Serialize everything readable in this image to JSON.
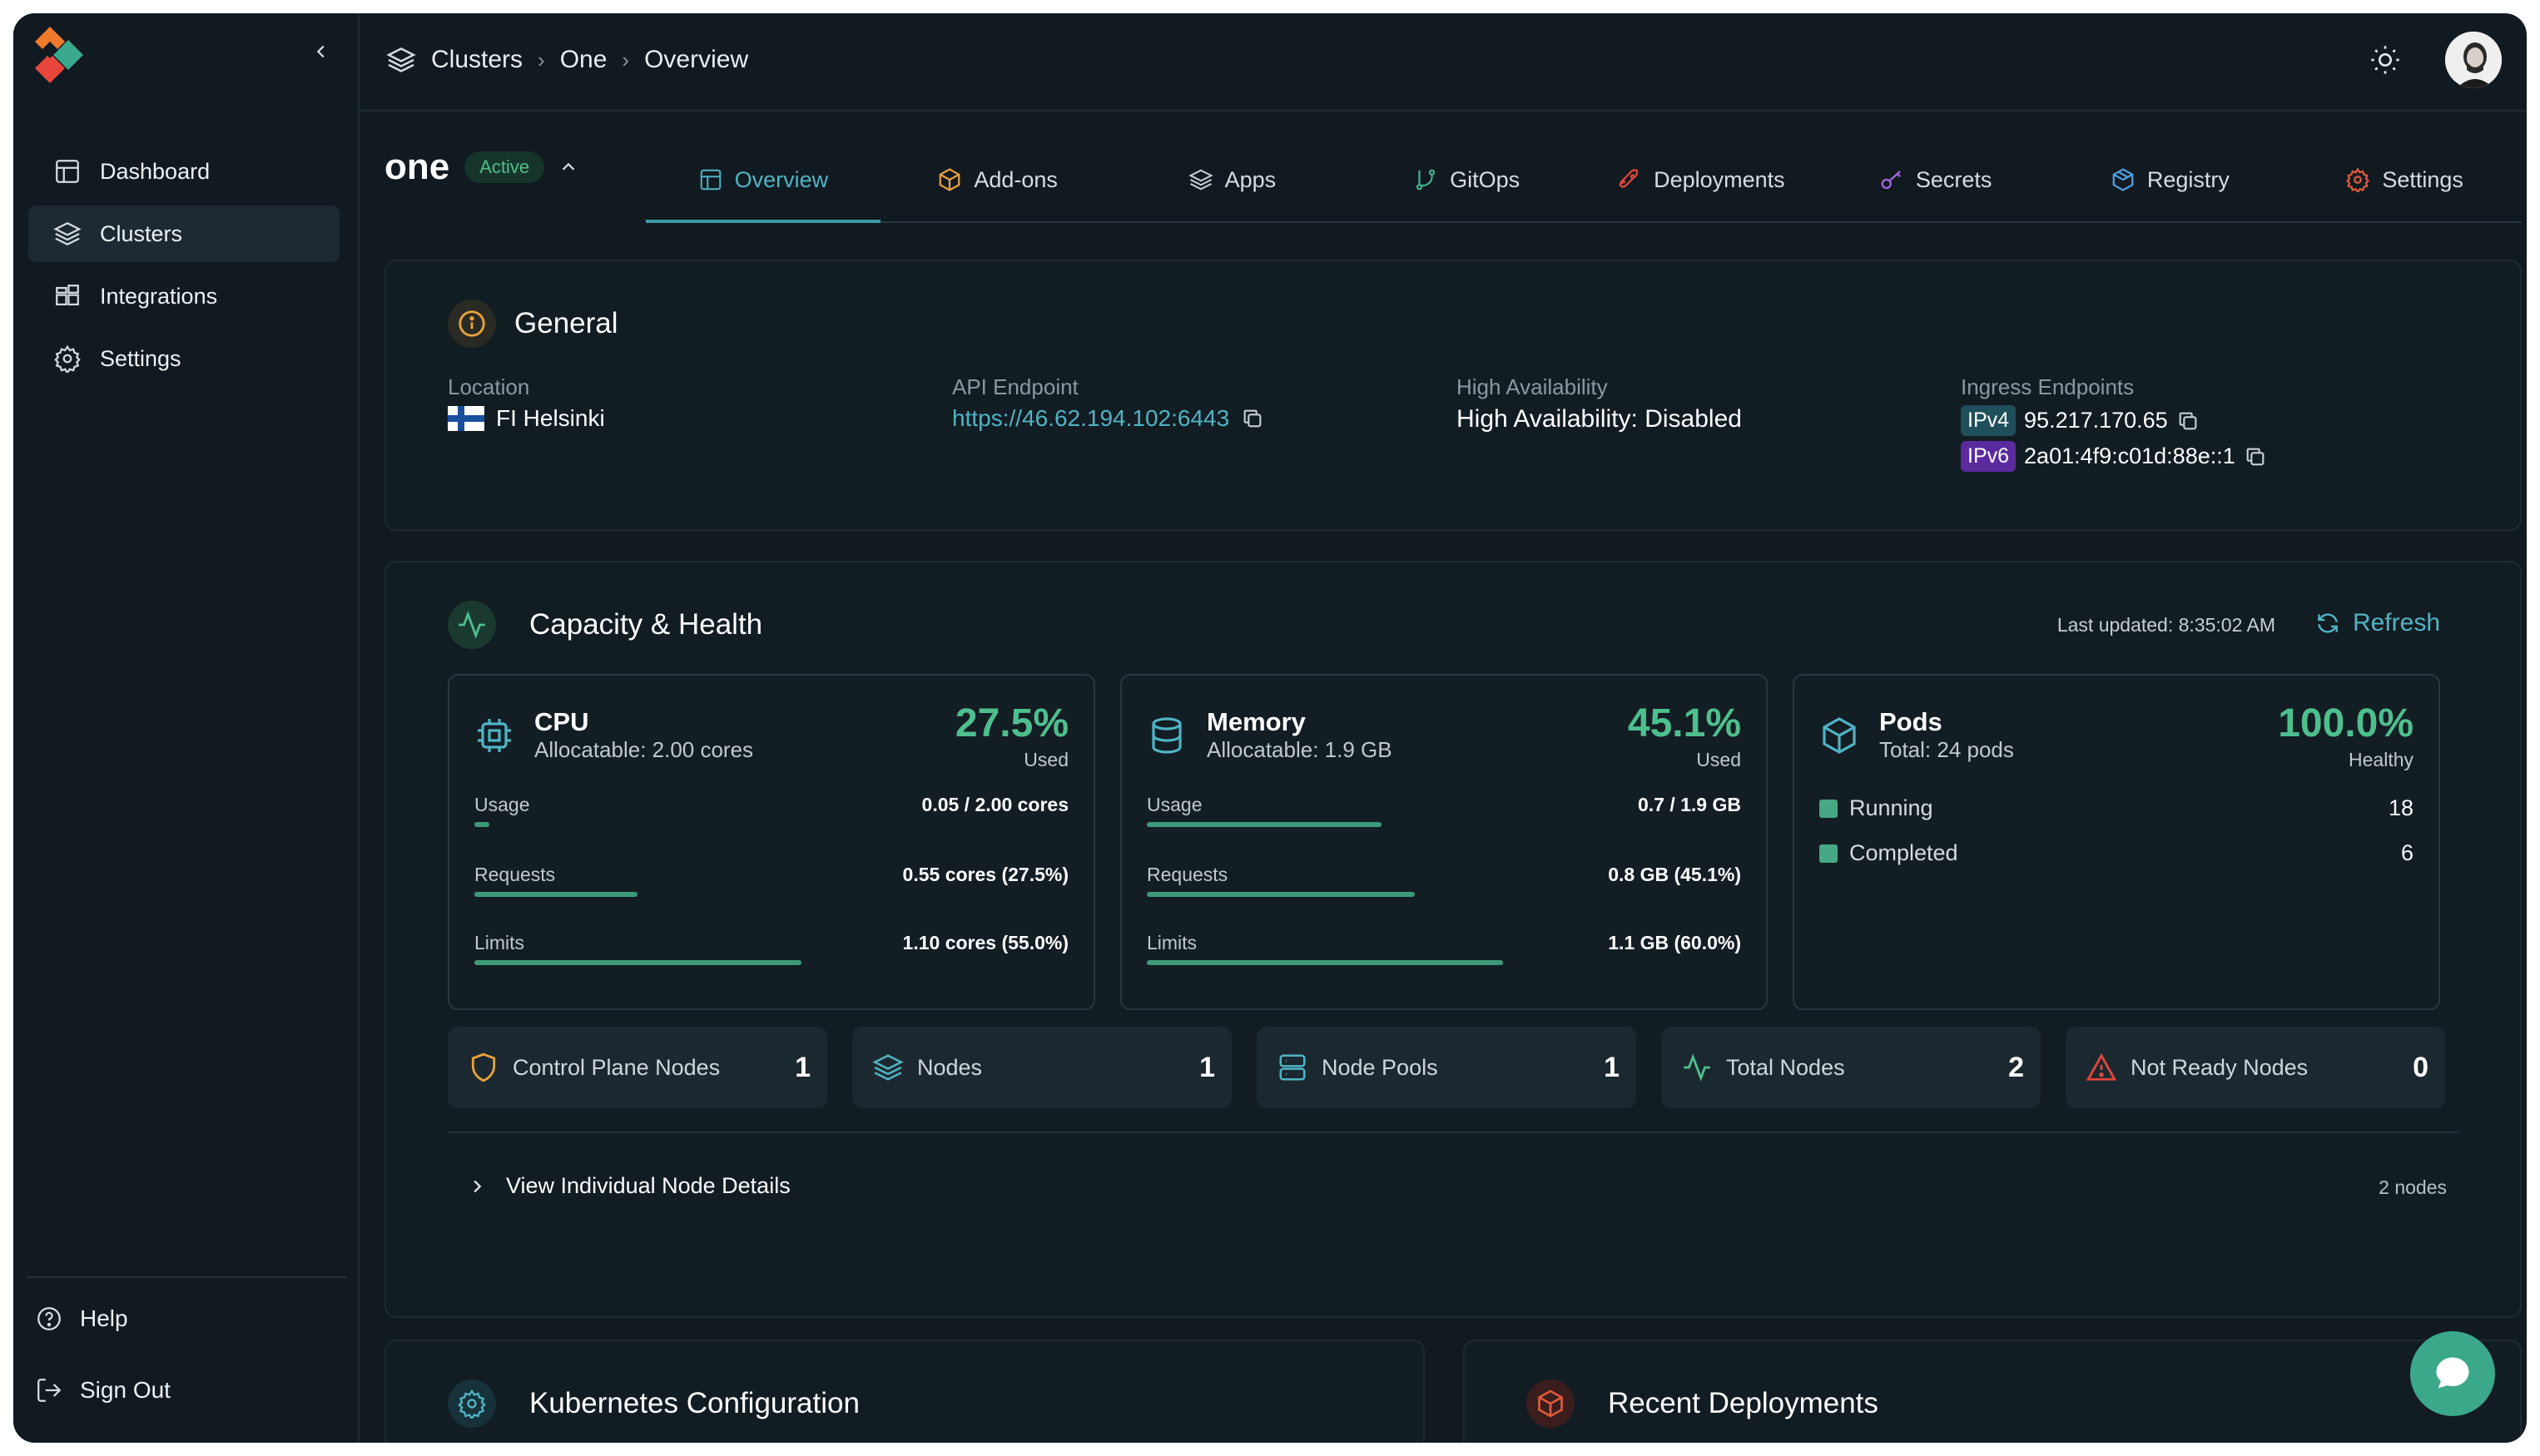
{
  "colors": {
    "accent": "#4fb4c4",
    "success": "#4dbf8d",
    "bg": "#111a21",
    "ipv4": "#1f4f5b",
    "ipv6": "#5b2a9e",
    "warning": "#e0a040",
    "danger": "#e0463a"
  },
  "sidebar": {
    "items": [
      {
        "label": "Dashboard",
        "icon": "layout-icon"
      },
      {
        "label": "Clusters",
        "icon": "layers-icon"
      },
      {
        "label": "Integrations",
        "icon": "puzzle-icon"
      },
      {
        "label": "Settings",
        "icon": "gear-icon"
      }
    ],
    "help": "Help",
    "sign_out": "Sign Out"
  },
  "breadcrumb": [
    "Clusters",
    "One",
    "Overview"
  ],
  "cluster": {
    "name": "one",
    "status": "Active"
  },
  "tabs": [
    {
      "label": "Overview",
      "icon": "layout-icon"
    },
    {
      "label": "Add-ons",
      "icon": "box-icon"
    },
    {
      "label": "Apps",
      "icon": "layers-icon"
    },
    {
      "label": "GitOps",
      "icon": "git-branch-icon"
    },
    {
      "label": "Deployments",
      "icon": "rocket-icon"
    },
    {
      "label": "Secrets",
      "icon": "key-icon"
    },
    {
      "label": "Registry",
      "icon": "package-icon"
    },
    {
      "label": "Settings",
      "icon": "gear-icon"
    }
  ],
  "general": {
    "title": "General",
    "location_label": "Location",
    "location_value": "FI Helsinki",
    "api_label": "API Endpoint",
    "api_value": "https://46.62.194.102:6443",
    "ha_label": "High Availability",
    "ha_value": "High Availability: Disabled",
    "ingress_label": "Ingress Endpoints",
    "ipv4_tag": "IPv4",
    "ipv4_value": "95.217.170.65",
    "ipv6_tag": "IPv6",
    "ipv6_value": "2a01:4f9:c01d:88e::1"
  },
  "capacity": {
    "title": "Capacity & Health",
    "last_updated": "Last updated: 8:35:02 AM",
    "refresh": "Refresh",
    "cpu": {
      "title": "CPU",
      "sub": "Allocatable: 2.00 cores",
      "pct": "27.5%",
      "pct_label": "Used",
      "usage_label": "Usage",
      "usage_value": "0.05 / 2.00 cores",
      "usage_frac": 0.025,
      "requests_label": "Requests",
      "requests_value": "0.55 cores (27.5%)",
      "requests_frac": 0.275,
      "limits_label": "Limits",
      "limits_value": "1.10 cores (55.0%)",
      "limits_frac": 0.55
    },
    "memory": {
      "title": "Memory",
      "sub": "Allocatable: 1.9 GB",
      "pct": "45.1%",
      "pct_label": "Used",
      "usage_label": "Usage",
      "usage_value": "0.7 / 1.9 GB",
      "usage_frac": 0.395,
      "requests_label": "Requests",
      "requests_value": "0.8 GB (45.1%)",
      "requests_frac": 0.451,
      "limits_label": "Limits",
      "limits_value": "1.1 GB (60.0%)",
      "limits_frac": 0.6
    },
    "pods": {
      "title": "Pods",
      "sub": "Total: 24 pods",
      "pct": "100.0%",
      "pct_label": "Healthy",
      "running_label": "Running",
      "running_count": "18",
      "completed_label": "Completed",
      "completed_count": "6"
    },
    "stats": [
      {
        "label": "Control Plane Nodes",
        "value": "1",
        "icon": "shield-icon"
      },
      {
        "label": "Nodes",
        "value": "1",
        "icon": "layers-icon"
      },
      {
        "label": "Node Pools",
        "value": "1",
        "icon": "server-icon"
      },
      {
        "label": "Total Nodes",
        "value": "2",
        "icon": "activity-icon"
      },
      {
        "label": "Not Ready Nodes",
        "value": "0",
        "icon": "warning-icon"
      }
    ],
    "details_label": "View Individual Node Details",
    "details_count": "2 nodes"
  },
  "k8s_config": {
    "title": "Kubernetes Configuration"
  },
  "recent_deployments": {
    "title": "Recent Deployments"
  }
}
